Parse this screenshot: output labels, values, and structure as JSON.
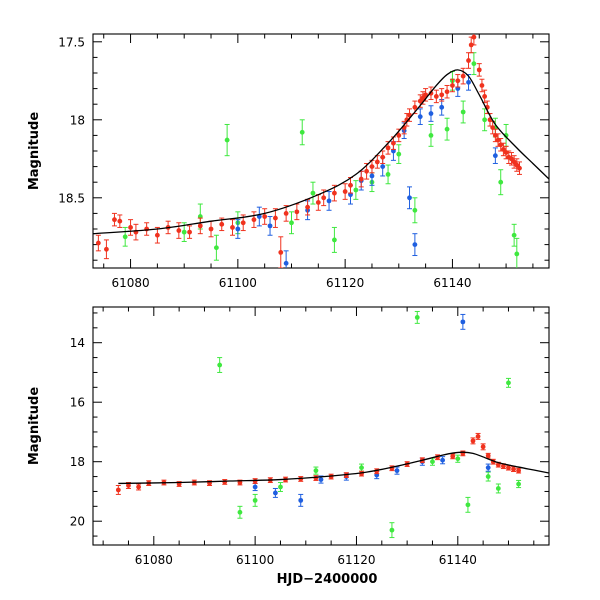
{
  "colors": {
    "red": "#f0321e",
    "green": "#3fe83f",
    "blue": "#1f5fe0",
    "model": "#000000"
  },
  "xlabel": "HJD−2400000",
  "chart_data": [
    {
      "type": "scatter",
      "panel": "top",
      "ylabel": "Magnitude",
      "xlim": [
        61073,
        61158
      ],
      "ylim": [
        18.95,
        17.45
      ],
      "x_ticks": [
        61080,
        61100,
        61120,
        61140
      ],
      "x_tick_labels": [
        "61080",
        "61100",
        "61120",
        "61140"
      ],
      "y_ticks": [
        17.5,
        18,
        18.5
      ],
      "y_tick_labels": [
        "17.5",
        "18",
        "18.5"
      ],
      "model": {
        "x": [
          61073,
          61085,
          61095,
          61105,
          61115,
          61122,
          61128,
          61133,
          61137,
          61139,
          61141,
          61143,
          61145,
          61148,
          61152,
          61155,
          61158
        ],
        "y": [
          18.73,
          18.7,
          18.65,
          18.6,
          18.48,
          18.35,
          18.15,
          17.95,
          17.78,
          17.71,
          17.68,
          17.72,
          17.84,
          18.03,
          18.18,
          18.28,
          18.38
        ]
      },
      "series": [
        {
          "name": "red",
          "color": "#f0321e",
          "points": [
            [
              61074,
              18.79,
              0.05
            ],
            [
              61075.5,
              18.83,
              0.06
            ],
            [
              61077,
              18.64,
              0.04
            ],
            [
              61078,
              18.65,
              0.04
            ],
            [
              61080,
              18.69,
              0.05
            ],
            [
              61081,
              18.72,
              0.05
            ],
            [
              61083,
              18.7,
              0.04
            ],
            [
              61085,
              18.74,
              0.05
            ],
            [
              61087,
              18.69,
              0.04
            ],
            [
              61089,
              18.71,
              0.05
            ],
            [
              61091,
              18.72,
              0.04
            ],
            [
              61093,
              18.68,
              0.05
            ],
            [
              61095,
              18.7,
              0.05
            ],
            [
              61097,
              18.67,
              0.04
            ],
            [
              61099,
              18.69,
              0.05
            ],
            [
              61101,
              18.66,
              0.05
            ],
            [
              61103,
              18.64,
              0.05
            ],
            [
              61105,
              18.62,
              0.05
            ],
            [
              61107,
              18.63,
              0.06
            ],
            [
              61108,
              18.85,
              0.1
            ],
            [
              61109,
              18.6,
              0.05
            ],
            [
              61111,
              18.59,
              0.05
            ],
            [
              61113,
              18.56,
              0.05
            ],
            [
              61115,
              18.53,
              0.05
            ],
            [
              61116,
              18.5,
              0.05
            ],
            [
              61118,
              18.47,
              0.05
            ],
            [
              61120,
              18.46,
              0.05
            ],
            [
              61121,
              18.42,
              0.05
            ],
            [
              61123,
              18.38,
              0.05
            ],
            [
              61124,
              18.33,
              0.05
            ],
            [
              61125,
              18.3,
              0.04
            ],
            [
              61126,
              18.27,
              0.04
            ],
            [
              61127,
              18.24,
              0.04
            ],
            [
              61128,
              18.18,
              0.04
            ],
            [
              61129,
              18.15,
              0.04
            ],
            [
              61130,
              18.1,
              0.04
            ],
            [
              61131,
              18.05,
              0.04
            ],
            [
              61131.5,
              18.0,
              0.04
            ],
            [
              61132,
              17.97,
              0.04
            ],
            [
              61133,
              17.92,
              0.04
            ],
            [
              61134,
              17.88,
              0.04
            ],
            [
              61134.5,
              17.86,
              0.04
            ],
            [
              61135,
              17.84,
              0.04
            ],
            [
              61136,
              17.83,
              0.04
            ],
            [
              61137,
              17.85,
              0.04
            ],
            [
              61138,
              17.84,
              0.04
            ],
            [
              61139,
              17.82,
              0.04
            ],
            [
              61140,
              17.78,
              0.04
            ],
            [
              61141,
              17.75,
              0.04
            ],
            [
              61142,
              17.72,
              0.05
            ],
            [
              61143,
              17.62,
              0.05
            ],
            [
              61143.5,
              17.52,
              0.05
            ],
            [
              61144,
              17.47,
              0.05
            ],
            [
              61145,
              17.68,
              0.04
            ],
            [
              61145.5,
              17.78,
              0.04
            ],
            [
              61146,
              17.85,
              0.04
            ],
            [
              61146.5,
              17.92,
              0.04
            ],
            [
              61147,
              18.0,
              0.04
            ],
            [
              61147.5,
              18.05,
              0.04
            ],
            [
              61148,
              18.1,
              0.04
            ],
            [
              61148.5,
              18.13,
              0.04
            ],
            [
              61149,
              18.16,
              0.04
            ],
            [
              61149.5,
              18.19,
              0.04
            ],
            [
              61150,
              18.21,
              0.04
            ],
            [
              61150.5,
              18.24,
              0.04
            ],
            [
              61151,
              18.25,
              0.04
            ],
            [
              61151.5,
              18.27,
              0.04
            ],
            [
              61152,
              18.29,
              0.04
            ],
            [
              61152.5,
              18.31,
              0.04
            ]
          ]
        },
        {
          "name": "green",
          "color": "#3fe83f",
          "points": [
            [
              61079,
              18.75,
              0.06
            ],
            [
              61090,
              18.72,
              0.06
            ],
            [
              61093,
              18.62,
              0.08
            ],
            [
              61096,
              18.82,
              0.08
            ],
            [
              61098,
              18.13,
              0.1
            ],
            [
              61100,
              18.66,
              0.07
            ],
            [
              61110,
              18.66,
              0.07
            ],
            [
              61112,
              18.08,
              0.08
            ],
            [
              61114,
              18.47,
              0.07
            ],
            [
              61118,
              18.77,
              0.08
            ],
            [
              61122,
              18.45,
              0.06
            ],
            [
              61125,
              18.4,
              0.06
            ],
            [
              61128,
              18.35,
              0.06
            ],
            [
              61130,
              18.22,
              0.06
            ],
            [
              61133,
              18.58,
              0.08
            ],
            [
              61136,
              18.1,
              0.07
            ],
            [
              61139,
              18.06,
              0.07
            ],
            [
              61140,
              17.75,
              0.06
            ],
            [
              61142,
              17.95,
              0.07
            ],
            [
              61144,
              17.64,
              0.07
            ],
            [
              61146,
              18.0,
              0.07
            ],
            [
              61148,
              18.05,
              0.06
            ],
            [
              61149,
              18.4,
              0.08
            ],
            [
              61150,
              18.1,
              0.07
            ],
            [
              61152,
              18.86,
              0.1
            ],
            [
              61151.5,
              18.74,
              0.07
            ]
          ]
        },
        {
          "name": "blue",
          "color": "#1f5fe0",
          "points": [
            [
              61100,
              18.7,
              0.06
            ],
            [
              61104,
              18.62,
              0.06
            ],
            [
              61106,
              18.68,
              0.06
            ],
            [
              61109,
              18.92,
              0.08
            ],
            [
              61113,
              18.58,
              0.06
            ],
            [
              61117,
              18.52,
              0.06
            ],
            [
              61121,
              18.48,
              0.06
            ],
            [
              61123,
              18.39,
              0.06
            ],
            [
              61125,
              18.36,
              0.06
            ],
            [
              61127,
              18.3,
              0.06
            ],
            [
              61129,
              18.2,
              0.06
            ],
            [
              61131,
              18.07,
              0.05
            ],
            [
              61132,
              18.5,
              0.07
            ],
            [
              61133,
              18.8,
              0.07
            ],
            [
              61134,
              17.98,
              0.05
            ],
            [
              61136,
              17.96,
              0.05
            ],
            [
              61138,
              17.92,
              0.05
            ],
            [
              61141,
              17.8,
              0.05
            ],
            [
              61143,
              17.76,
              0.05
            ],
            [
              61148,
              18.23,
              0.05
            ]
          ]
        }
      ]
    },
    {
      "type": "scatter",
      "panel": "bottom",
      "ylabel": "Magnitude",
      "xlim": [
        61068,
        61158
      ],
      "ylim": [
        20.8,
        12.8
      ],
      "x_ticks": [
        61080,
        61100,
        61120,
        61140
      ],
      "x_tick_labels": [
        "61080",
        "61100",
        "61120",
        "61140"
      ],
      "y_ticks": [
        14,
        16,
        18,
        20
      ],
      "y_tick_labels": [
        "14",
        "16",
        "18",
        "20"
      ],
      "model": {
        "x": [
          61073,
          61085,
          61095,
          61105,
          61115,
          61122,
          61128,
          61133,
          61137,
          61139,
          61141,
          61143,
          61145,
          61148,
          61152,
          61155,
          61158
        ],
        "y": [
          18.73,
          18.7,
          18.65,
          18.6,
          18.48,
          18.35,
          18.15,
          17.95,
          17.78,
          17.71,
          17.68,
          17.72,
          17.84,
          18.03,
          18.18,
          18.28,
          18.38
        ]
      },
      "series": [
        {
          "name": "red",
          "color": "#f0321e",
          "points": [
            [
              61073,
              18.95,
              0.15
            ],
            [
              61075,
              18.8,
              0.1
            ],
            [
              61077,
              18.85,
              0.1
            ],
            [
              61079,
              18.72,
              0.08
            ],
            [
              61082,
              18.7,
              0.08
            ],
            [
              61085,
              18.75,
              0.08
            ],
            [
              61088,
              18.7,
              0.08
            ],
            [
              61091,
              18.72,
              0.08
            ],
            [
              61094,
              18.68,
              0.08
            ],
            [
              61097,
              18.7,
              0.08
            ],
            [
              61100,
              18.65,
              0.08
            ],
            [
              61103,
              18.62,
              0.08
            ],
            [
              61106,
              18.6,
              0.08
            ],
            [
              61109,
              18.58,
              0.08
            ],
            [
              61112,
              18.55,
              0.08
            ],
            [
              61115,
              18.5,
              0.08
            ],
            [
              61118,
              18.45,
              0.08
            ],
            [
              61121,
              18.4,
              0.08
            ],
            [
              61124,
              18.32,
              0.08
            ],
            [
              61127,
              18.22,
              0.08
            ],
            [
              61130,
              18.08,
              0.08
            ],
            [
              61133,
              17.95,
              0.08
            ],
            [
              61136,
              17.85,
              0.08
            ],
            [
              61139,
              17.82,
              0.08
            ],
            [
              61141,
              17.72,
              0.08
            ],
            [
              61143,
              17.3,
              0.1
            ],
            [
              61144,
              17.15,
              0.1
            ],
            [
              61145,
              17.5,
              0.1
            ],
            [
              61146,
              17.8,
              0.08
            ],
            [
              61147,
              18.0,
              0.08
            ],
            [
              61148,
              18.1,
              0.08
            ],
            [
              61149,
              18.15,
              0.08
            ],
            [
              61150,
              18.2,
              0.08
            ],
            [
              61151,
              18.25,
              0.08
            ],
            [
              61152,
              18.3,
              0.08
            ]
          ]
        },
        {
          "name": "green",
          "color": "#3fe83f",
          "points": [
            [
              61093,
              14.75,
              0.25
            ],
            [
              61097,
              19.7,
              0.2
            ],
            [
              61100,
              19.3,
              0.2
            ],
            [
              61105,
              18.85,
              0.15
            ],
            [
              61112,
              18.3,
              0.12
            ],
            [
              61121,
              18.2,
              0.12
            ],
            [
              61127,
              20.3,
              0.25
            ],
            [
              61132,
              13.15,
              0.2
            ],
            [
              61135,
              18.0,
              0.12
            ],
            [
              61140,
              17.9,
              0.12
            ],
            [
              61142,
              19.45,
              0.25
            ],
            [
              61146,
              18.5,
              0.15
            ],
            [
              61148,
              18.9,
              0.15
            ],
            [
              61150,
              15.35,
              0.15
            ],
            [
              61152,
              18.75,
              0.12
            ]
          ]
        },
        {
          "name": "blue",
          "color": "#1f5fe0",
          "points": [
            [
              61100,
              18.85,
              0.12
            ],
            [
              61104,
              19.05,
              0.15
            ],
            [
              61109,
              19.3,
              0.2
            ],
            [
              61113,
              18.6,
              0.12
            ],
            [
              61118,
              18.5,
              0.12
            ],
            [
              61124,
              18.45,
              0.12
            ],
            [
              61128,
              18.3,
              0.12
            ],
            [
              61133,
              18.0,
              0.12
            ],
            [
              61137,
              17.95,
              0.12
            ],
            [
              61141,
              13.3,
              0.25
            ],
            [
              61146,
              18.2,
              0.12
            ]
          ]
        }
      ]
    }
  ]
}
